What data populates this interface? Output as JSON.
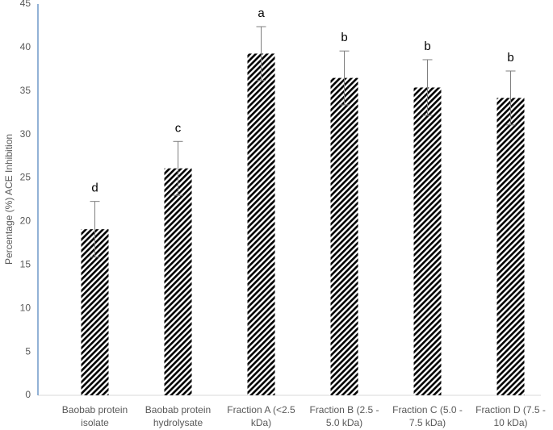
{
  "chart_data": {
    "type": "bar",
    "y_label": "Percentage (%) ACE Inhibition",
    "categories": [
      "Baobab protein isolate",
      "Baobab protein hydrolysate",
      "Fraction A (<2.5 kDa)",
      "Fraction B (2.5 - 5.0 kDa)",
      "Fraction C (5.0 - 7.5 kDa)",
      "Fraction D (7.5 - 10 kDa)"
    ],
    "values": [
      19.1,
      26.1,
      39.3,
      36.5,
      35.4,
      34.2
    ],
    "errors": [
      3.2,
      3.1,
      3.1,
      3.1,
      3.2,
      3.1
    ],
    "annotations": [
      "d",
      "c",
      "a",
      "b",
      "b",
      "b"
    ],
    "color": "#000000",
    "ylim": [
      0,
      45
    ],
    "yticks": [
      0,
      5,
      10,
      15,
      20,
      25,
      30,
      35,
      40,
      45
    ],
    "grid": false
  }
}
